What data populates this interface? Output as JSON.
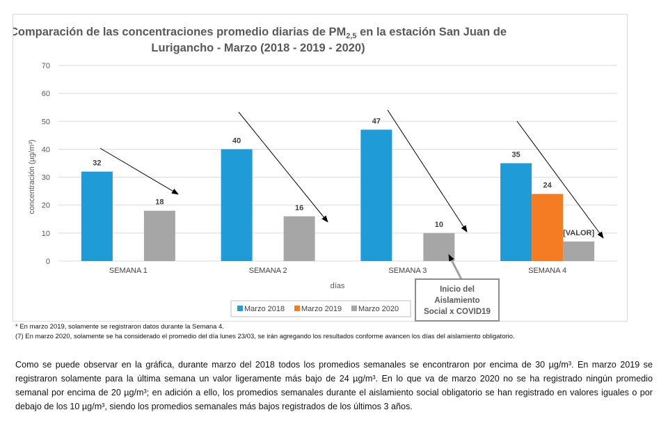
{
  "chart_data": {
    "type": "bar",
    "title_line1": "Comparación de las concentraciones promedio diarias de PM",
    "title_sub": "2,5",
    "title_line1_end": " en la estación San Juan de",
    "title_line2": "Lurigancho - Marzo (2018 - 2019 - 2020)",
    "xlabel": "días",
    "ylabel": "concentración (µg/m³)",
    "ylim": [
      0,
      70
    ],
    "yticks": [
      "0",
      "10",
      "20",
      "30",
      "40",
      "50",
      "60",
      "70"
    ],
    "grid": true,
    "legend_position": "bottom",
    "categories": [
      "SEMANA 1",
      "SEMANA 2",
      "SEMANA 3",
      "SEMANA 4"
    ],
    "series": [
      {
        "name": "Marzo 2018",
        "color": "#1f9bd7",
        "values": [
          32,
          40,
          47,
          35
        ],
        "labels": [
          "32",
          "40",
          "47",
          "35"
        ]
      },
      {
        "name": "Marzo 2019",
        "color": "#f57c22",
        "values": [
          null,
          null,
          null,
          24
        ],
        "labels": [
          "",
          "",
          "",
          "24"
        ]
      },
      {
        "name": "Marzo 2020",
        "color": "#a6a6a6",
        "values": [
          18,
          16,
          10,
          7
        ],
        "labels": [
          "18",
          "16",
          "10",
          "[VALOR]"
        ]
      }
    ],
    "callout_lines": [
      "Inicio del",
      "Aislamiento",
      "Social x COVID19"
    ]
  },
  "footnotes": [
    "* En marzo 2019, solamente se registraron datos durante la Semana 4.",
    "(7) En marzo 2020, solamente se ha considerado el promedio del día lunes 23/03, se irán agregando los resultados conforme avancen los días del aislamiento obligatorio."
  ],
  "paragraph": "Como se puede observar en la gráfica, durante marzo del 2018 todos los promedios semanales se encontraron por encima de 30 µg/m³. En marzo 2019 se registraron solamente para la última semana un valor ligeramente más bajo de 24 µg/m³. En lo que va de marzo 2020 no se ha registrado ningún promedio semanal por encima de 20 µg/m³; en adición a ello, los promedios semanales durante el aislamiento social obligatorio se han registrado en valores iguales o por debajo de los 10 µg/m³, siendo los promedios semanales más bajos registrados de los últimos 3 años."
}
